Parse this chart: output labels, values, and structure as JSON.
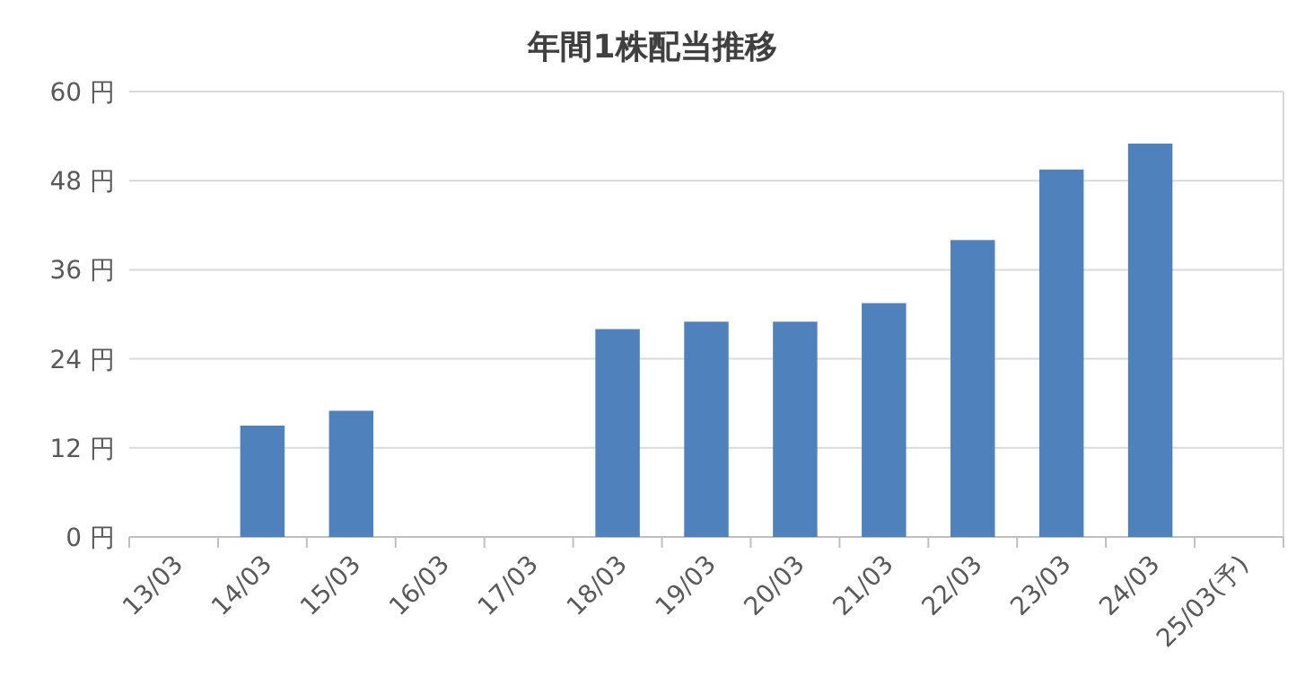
{
  "chart_data": {
    "type": "bar",
    "title": "年間1株配当推移",
    "categories": [
      "13/03",
      "14/03",
      "15/03",
      "16/03",
      "17/03",
      "18/03",
      "19/03",
      "20/03",
      "21/03",
      "22/03",
      "23/03",
      "24/03",
      "25/03(予)"
    ],
    "values": [
      null,
      15,
      17,
      null,
      null,
      28,
      29,
      29,
      31.5,
      40,
      49.5,
      53,
      null
    ],
    "color": "#4f81bd",
    "ylim": [
      0,
      60
    ],
    "yticks": [
      {
        "value": 0,
        "label": "0 円"
      },
      {
        "value": 12,
        "label": "12 円"
      },
      {
        "value": 24,
        "label": "24 円"
      },
      {
        "value": 36,
        "label": "36 円"
      },
      {
        "value": 48,
        "label": "48 円"
      },
      {
        "value": 60,
        "label": "60 円"
      }
    ],
    "grid": "y"
  }
}
